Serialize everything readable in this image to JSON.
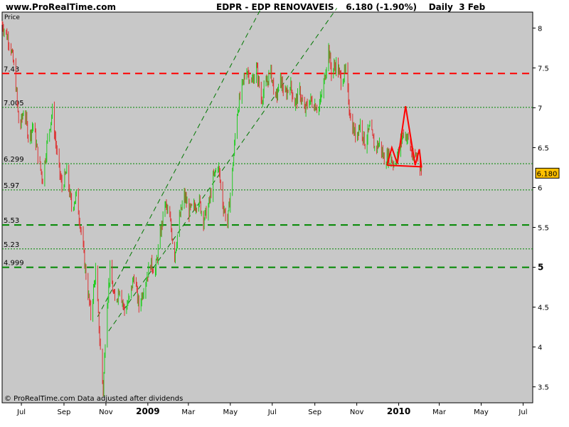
{
  "header": {
    "site": "www.ProRealTime.com",
    "ticker": "EDPR - EDP RENOVAVEIS",
    "quote": "6.180 (-1.90%)",
    "period": "Daily",
    "date": "3 Feb"
  },
  "chart_data": {
    "type": "candlestick",
    "ylabel": "Price",
    "ylim": [
      3.3,
      8.2
    ],
    "xlim": [
      "2008-06-03",
      "2010-07-15"
    ],
    "price_tag": "6.180",
    "footer": "© ProRealTime.com  Data adjusted after dividends",
    "y_ticks": [
      {
        "value": 8,
        "label": "8"
      },
      {
        "value": 7.5,
        "label": "7.5"
      },
      {
        "value": 7,
        "label": "7"
      },
      {
        "value": 6.5,
        "label": "6.5"
      },
      {
        "value": 6,
        "label": "6"
      },
      {
        "value": 5.5,
        "label": "5.5"
      },
      {
        "value": 5,
        "label": "5"
      },
      {
        "value": 4.5,
        "label": "4.5"
      },
      {
        "value": 4,
        "label": "4"
      },
      {
        "value": 3.5,
        "label": "3.5"
      }
    ],
    "x_ticks": [
      {
        "date": "2008-07-01",
        "label": "Jul",
        "bold": false
      },
      {
        "date": "2008-09-01",
        "label": "Sep",
        "bold": false
      },
      {
        "date": "2008-11-01",
        "label": "Nov",
        "bold": false
      },
      {
        "date": "2009-01-01",
        "label": "2009",
        "bold": true
      },
      {
        "date": "2009-03-01",
        "label": "Mar",
        "bold": false
      },
      {
        "date": "2009-05-01",
        "label": "May",
        "bold": false
      },
      {
        "date": "2009-07-01",
        "label": "Jul",
        "bold": false
      },
      {
        "date": "2009-09-01",
        "label": "Sep",
        "bold": false
      },
      {
        "date": "2009-11-01",
        "label": "Nov",
        "bold": false
      },
      {
        "date": "2010-01-01",
        "label": "2010",
        "bold": true
      },
      {
        "date": "2010-03-01",
        "label": "Mar",
        "bold": false
      },
      {
        "date": "2010-05-01",
        "label": "May",
        "bold": false
      },
      {
        "date": "2010-07-01",
        "label": "Jul",
        "bold": false
      }
    ],
    "hlines": [
      {
        "value": 7.43,
        "label": "7.43",
        "color": "#ff0000",
        "style": "dashed-thick"
      },
      {
        "value": 7.005,
        "label": "7.005",
        "color": "#008800",
        "style": "dotted"
      },
      {
        "value": 6.299,
        "label": "6.299",
        "color": "#008800",
        "style": "dotted"
      },
      {
        "value": 5.97,
        "label": "5.97",
        "color": "#008800",
        "style": "dotted"
      },
      {
        "value": 5.53,
        "label": "5.53",
        "color": "#008800",
        "style": "dashed-thick"
      },
      {
        "value": 5.23,
        "label": "5.23",
        "color": "#008800",
        "style": "dotted"
      },
      {
        "value": 4.999,
        "label": "4.999",
        "color": "#008800",
        "style": "dashed-thick"
      }
    ],
    "trendlines": [
      {
        "x1": "2008-10-20",
        "y1": 4.38,
        "x2": "2009-06-15",
        "y2": 8.25
      },
      {
        "x1": "2008-11-05",
        "y1": 4.2,
        "x2": "2009-10-03",
        "y2": 8.25
      }
    ],
    "pattern": {
      "color": "#ff0000",
      "points": [
        {
          "date": "2009-12-15",
          "value": 6.28
        },
        {
          "date": "2009-12-22",
          "value": 6.5
        },
        {
          "date": "2009-12-30",
          "value": 6.3
        },
        {
          "date": "2010-01-11",
          "value": 7.02
        },
        {
          "date": "2010-01-25",
          "value": 6.28
        },
        {
          "date": "2010-01-31",
          "value": 6.48
        },
        {
          "date": "2010-02-03",
          "value": 6.26
        },
        {
          "date": "2009-12-15",
          "value": 6.28
        }
      ]
    },
    "series_path": [
      [
        "2008-06-03",
        8.05
      ],
      [
        "2008-06-15",
        7.8
      ],
      [
        "2008-06-22",
        7.4
      ],
      [
        "2008-06-28",
        6.7
      ],
      [
        "2008-07-05",
        7.0
      ],
      [
        "2008-07-12",
        6.6
      ],
      [
        "2008-07-18",
        6.8
      ],
      [
        "2008-07-25",
        6.4
      ],
      [
        "2008-08-01",
        6.1
      ],
      [
        "2008-08-08",
        6.6
      ],
      [
        "2008-08-15",
        6.95
      ],
      [
        "2008-08-22",
        6.4
      ],
      [
        "2008-08-29",
        6.0
      ],
      [
        "2008-09-05",
        6.2
      ],
      [
        "2008-09-12",
        5.75
      ],
      [
        "2008-09-19",
        5.9
      ],
      [
        "2008-09-26",
        5.45
      ],
      [
        "2008-10-03",
        4.9
      ],
      [
        "2008-10-10",
        4.4
      ],
      [
        "2008-10-17",
        4.95
      ],
      [
        "2008-10-24",
        3.95
      ],
      [
        "2008-10-28",
        3.45
      ],
      [
        "2008-11-02",
        4.5
      ],
      [
        "2008-11-07",
        4.95
      ],
      [
        "2008-11-14",
        4.55
      ],
      [
        "2008-11-21",
        4.75
      ],
      [
        "2008-11-28",
        4.45
      ],
      [
        "2008-12-05",
        4.6
      ],
      [
        "2008-12-12",
        4.9
      ],
      [
        "2008-12-19",
        4.5
      ],
      [
        "2008-12-26",
        4.75
      ],
      [
        "2009-01-05",
        5.05
      ],
      [
        "2009-01-12",
        4.95
      ],
      [
        "2009-01-19",
        5.4
      ],
      [
        "2009-01-26",
        5.8
      ],
      [
        "2009-02-02",
        5.6
      ],
      [
        "2009-02-09",
        5.15
      ],
      [
        "2009-02-16",
        5.6
      ],
      [
        "2009-02-23",
        5.9
      ],
      [
        "2009-03-02",
        5.7
      ],
      [
        "2009-03-09",
        5.75
      ],
      [
        "2009-03-16",
        5.85
      ],
      [
        "2009-03-23",
        5.6
      ],
      [
        "2009-03-30",
        5.75
      ],
      [
        "2009-04-06",
        6.1
      ],
      [
        "2009-04-13",
        6.3
      ],
      [
        "2009-04-20",
        5.8
      ],
      [
        "2009-04-27",
        5.55
      ],
      [
        "2009-05-04",
        6.2
      ],
      [
        "2009-05-11",
        6.95
      ],
      [
        "2009-05-18",
        7.25
      ],
      [
        "2009-05-25",
        7.5
      ],
      [
        "2009-06-01",
        7.3
      ],
      [
        "2009-06-08",
        7.5
      ],
      [
        "2009-06-15",
        7.1
      ],
      [
        "2009-06-22",
        7.3
      ],
      [
        "2009-06-29",
        7.45
      ],
      [
        "2009-07-06",
        7.1
      ],
      [
        "2009-07-13",
        7.35
      ],
      [
        "2009-07-20",
        7.15
      ],
      [
        "2009-07-27",
        7.3
      ],
      [
        "2009-08-03",
        7.05
      ],
      [
        "2009-08-10",
        7.2
      ],
      [
        "2009-08-17",
        6.95
      ],
      [
        "2009-08-24",
        7.1
      ],
      [
        "2009-08-31",
        7.05
      ],
      [
        "2009-09-07",
        7.0
      ],
      [
        "2009-09-14",
        7.3
      ],
      [
        "2009-09-21",
        7.75
      ],
      [
        "2009-09-25",
        7.45
      ],
      [
        "2009-10-02",
        7.55
      ],
      [
        "2009-10-09",
        7.35
      ],
      [
        "2009-10-16",
        7.45
      ],
      [
        "2009-10-23",
        6.85
      ],
      [
        "2009-10-30",
        6.65
      ],
      [
        "2009-11-06",
        6.8
      ],
      [
        "2009-11-13",
        6.55
      ],
      [
        "2009-11-20",
        6.75
      ],
      [
        "2009-11-27",
        6.5
      ],
      [
        "2009-12-04",
        6.55
      ],
      [
        "2009-12-11",
        6.35
      ],
      [
        "2009-12-18",
        6.4
      ],
      [
        "2009-12-25",
        6.3
      ],
      [
        "2010-01-01",
        6.45
      ],
      [
        "2010-01-08",
        6.7
      ],
      [
        "2010-01-15",
        6.6
      ],
      [
        "2010-01-22",
        6.35
      ],
      [
        "2010-01-29",
        6.42
      ],
      [
        "2010-02-03",
        6.18
      ]
    ]
  }
}
